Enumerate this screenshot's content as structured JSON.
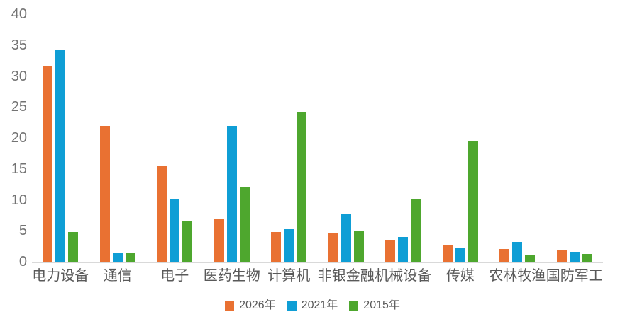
{
  "chart_data": {
    "type": "bar",
    "title": "",
    "xlabel": "",
    "ylabel": "",
    "categories": [
      "电力设备",
      "通信",
      "电子",
      "医药生物",
      "计算机",
      "非银金融",
      "机械设备",
      "传媒",
      "农林牧渔",
      "国防军工"
    ],
    "series": [
      {
        "name": "2026年",
        "color": "#E97132",
        "values": [
          31.6,
          22.0,
          15.4,
          7.0,
          4.8,
          4.6,
          3.6,
          2.7,
          2.1,
          1.8
        ]
      },
      {
        "name": "2021年",
        "color": "#0F9ED5",
        "values": [
          34.3,
          1.5,
          10.1,
          22.0,
          5.3,
          7.7,
          4.0,
          2.3,
          3.2,
          1.6
        ]
      },
      {
        "name": "2015年",
        "color": "#4EA72E",
        "values": [
          4.8,
          1.4,
          6.6,
          12.0,
          24.1,
          5.0,
          10.1,
          19.5,
          1.0,
          1.3
        ]
      }
    ],
    "y_ticks": [
      40,
      35,
      30,
      25,
      20,
      15,
      10,
      5,
      0
    ],
    "ylim": [
      0,
      40
    ],
    "grid": false,
    "legend_position": "bottom",
    "style": {
      "axis_line_color": "#D9D9D9",
      "y_tick_text_color": "#737373",
      "category_text_color": "#595959",
      "legend_text_color": "#595959",
      "background_color": "#FFFFFF"
    }
  }
}
